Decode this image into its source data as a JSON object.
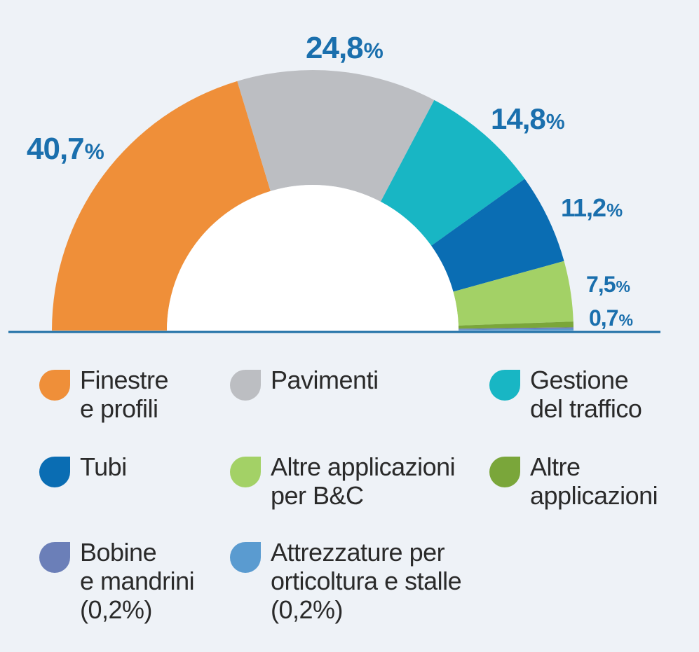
{
  "chart_data": {
    "type": "pie",
    "variant": "semi-donut",
    "slices": [
      {
        "label": "Finestre\ne profili",
        "value": 40.7,
        "display": "40,7",
        "color": "#ef8f39",
        "show_value": true
      },
      {
        "label": "Pavimenti",
        "value": 24.8,
        "display": "24,8",
        "color": "#bcbec2",
        "show_value": true
      },
      {
        "label": "Gestione\ndel traffico",
        "value": 14.8,
        "display": "14,8",
        "color": "#18b6c4",
        "show_value": true
      },
      {
        "label": "Tubi",
        "value": 11.2,
        "display": "11,2",
        "color": "#0a6db3",
        "show_value": true
      },
      {
        "label": "Altre applicazioni\nper B&C",
        "value": 7.5,
        "display": "7,5",
        "color": "#a3d166",
        "show_value": true
      },
      {
        "label": "Altre\napplicazioni",
        "value": 0.7,
        "display": "0,7",
        "color": "#7aa63a",
        "show_value": true
      },
      {
        "label": "Bobine\ne mandrini\n(0,2%)",
        "value": 0.2,
        "display": "0,2",
        "color": "#6b7fb8",
        "show_value": false
      },
      {
        "label": "Attrezzature per\norticoltura e stalle\n(0,2%)",
        "value": 0.2,
        "display": "0,2",
        "color": "#5a9bd0",
        "show_value": false
      }
    ],
    "unit": "%",
    "value_color": "#1a6fad",
    "baseline_color": "#1e6fa6",
    "legend_position": "bottom"
  }
}
